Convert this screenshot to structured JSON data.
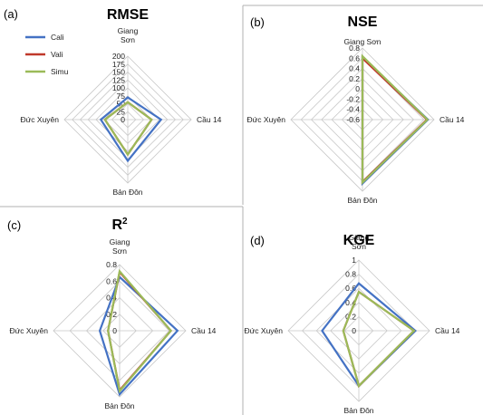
{
  "colors": {
    "Cali": "#4472c4",
    "Vali": "#c0392b",
    "Simu": "#9bbb59"
  },
  "chart_data": [
    {
      "type": "radar",
      "panel_label": "(a)",
      "title": "RMSE",
      "title_sup": "",
      "axes": [
        "Giang Sơn",
        "Cầu 14",
        "Bản Đôn",
        "Đức Xuyên"
      ],
      "axis_label_lines": [
        [
          "Giang",
          "Sơn"
        ],
        [
          "Cầu 14"
        ],
        [
          "Bản Đôn"
        ],
        [
          "Đức Xuyên"
        ]
      ],
      "range": [
        0,
        200
      ],
      "ticks": [
        "0",
        "25",
        "50",
        "75",
        "100",
        "125",
        "150",
        "175",
        "200"
      ],
      "legend": [
        "Cali",
        "Vali",
        "Simu"
      ],
      "series": [
        {
          "name": "Cali",
          "values": [
            70,
            105,
            130,
            85
          ]
        },
        {
          "name": "Vali",
          "values": [
            55,
            75,
            110,
            72
          ]
        },
        {
          "name": "Simu",
          "values": [
            55,
            75,
            110,
            72
          ]
        }
      ]
    },
    {
      "type": "radar",
      "panel_label": "(b)",
      "title": "NSE",
      "title_sup": "",
      "axes": [
        "Giang Sơn",
        "Cầu 14",
        "Bản Đôn",
        "Đức Xuyên"
      ],
      "axis_label_lines": [
        [
          "Giang Sơn"
        ],
        [
          "Cầu 14"
        ],
        [
          "Bản Đôn"
        ],
        [
          "Đức Xuyên"
        ]
      ],
      "range": [
        -0.6,
        0.8
      ],
      "ticks": [
        "-0.6",
        "-0.4",
        "-0.2",
        "0",
        "0.2",
        "0.4",
        "0.6",
        "0.8"
      ],
      "legend": [],
      "series": [
        {
          "name": "Cali",
          "values": [
            0.62,
            0.68,
            0.65,
            -0.6
          ]
        },
        {
          "name": "Vali",
          "values": [
            0.6,
            0.66,
            0.62,
            -0.6
          ]
        },
        {
          "name": "Simu",
          "values": [
            0.64,
            0.67,
            0.63,
            -0.6
          ]
        }
      ]
    },
    {
      "type": "radar",
      "panel_label": "(c)",
      "title": "R",
      "title_sup": "2",
      "axes": [
        "Giang Sơn",
        "Cầu 14",
        "Bản Đôn",
        "Đức Xuyên"
      ],
      "axis_label_lines": [
        [
          "Giang",
          "Sơn"
        ],
        [
          "Cầu 14"
        ],
        [
          "Bản Đôn"
        ],
        [
          "Đức Xuyên"
        ]
      ],
      "range": [
        0,
        0.8
      ],
      "ticks": [
        "0",
        "0.2",
        "0.4",
        "0.6",
        "0.8"
      ],
      "legend": [],
      "series": [
        {
          "name": "Cali",
          "values": [
            0.65,
            0.7,
            0.77,
            0.24
          ]
        },
        {
          "name": "Vali",
          "values": [
            0.71,
            0.62,
            0.72,
            0.14
          ]
        },
        {
          "name": "Simu",
          "values": [
            0.72,
            0.62,
            0.73,
            0.14
          ]
        }
      ]
    },
    {
      "type": "radar",
      "panel_label": "(d)",
      "title": "KGE",
      "title_sup": "",
      "axes": [
        "Giang Sơn",
        "Cầu 14",
        "Bản Đôn",
        "Đức Xuyên"
      ],
      "axis_label_lines": [
        [
          "Giang",
          "Sơn"
        ],
        [
          "Cầu 14"
        ],
        [
          "Bản Đôn"
        ],
        [
          "Đức Xuyên"
        ]
      ],
      "range": [
        0,
        1
      ],
      "ticks": [
        "0",
        "0.2",
        "0.4",
        "0.6",
        "0.8",
        "1"
      ],
      "legend": [],
      "series": [
        {
          "name": "Cali",
          "values": [
            0.67,
            0.8,
            0.78,
            0.52
          ]
        },
        {
          "name": "Vali",
          "values": [
            0.55,
            0.78,
            0.78,
            0.22
          ]
        },
        {
          "name": "Simu",
          "values": [
            0.55,
            0.78,
            0.78,
            0.22
          ]
        }
      ]
    }
  ]
}
